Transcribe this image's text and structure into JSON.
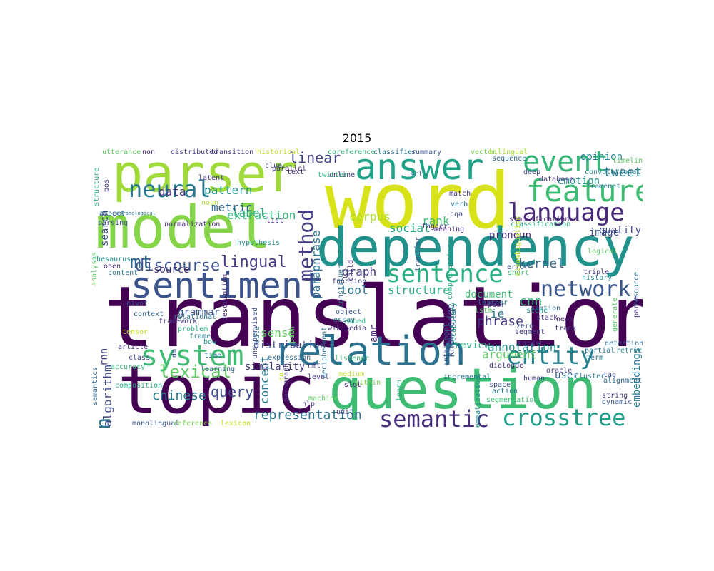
{
  "title": "2015",
  "words": [
    {
      "t": "translation",
      "c": "#440154"
    },
    {
      "t": "word",
      "c": "#d8e219"
    },
    {
      "t": "model",
      "c": "#86d549"
    },
    {
      "t": "dependency",
      "c": "#21918c"
    },
    {
      "t": "question",
      "c": "#3fbc73"
    },
    {
      "t": "topic",
      "c": "#440154"
    },
    {
      "t": "parser",
      "c": "#9fda3a"
    },
    {
      "t": "relation",
      "c": "#2c728e"
    },
    {
      "t": "sentiment",
      "c": "#3b528b"
    },
    {
      "t": "answer",
      "c": "#1fa187"
    },
    {
      "t": "feature",
      "c": "#3fbc73"
    },
    {
      "t": "language",
      "c": "#482878"
    },
    {
      "t": "event",
      "c": "#35b779"
    },
    {
      "t": "system",
      "c": "#3fbc73"
    },
    {
      "t": "entity",
      "c": "#26828e"
    },
    {
      "t": "sentence",
      "c": "#2ab07f"
    },
    {
      "t": "semantic",
      "c": "#472d7b"
    },
    {
      "t": "crosstree",
      "c": "#1f9e89"
    },
    {
      "t": "network",
      "c": "#39568c"
    },
    {
      "t": "neural",
      "c": "#2a788e"
    },
    {
      "t": "domain",
      "c": "#2c728e"
    },
    {
      "t": "method",
      "c": "#433e85"
    },
    {
      "t": "mt",
      "c": "#31688e"
    },
    {
      "t": "lexical",
      "c": "#5ec962"
    },
    {
      "t": "discourse",
      "c": "#3b528b"
    },
    {
      "t": "lingual",
      "c": "#443983"
    },
    {
      "t": "query",
      "c": "#3e4989"
    },
    {
      "t": "chinese",
      "c": "#2a788e"
    },
    {
      "t": "representation",
      "c": "#2c728e"
    },
    {
      "t": "kernel",
      "c": "#31688e"
    },
    {
      "t": "tweet",
      "c": "#2a788e"
    },
    {
      "t": "linear",
      "c": "#414487"
    },
    {
      "t": "pattern",
      "c": "#21918c"
    },
    {
      "t": "data",
      "c": "#46337e"
    },
    {
      "t": "label",
      "c": "#2ab07f"
    },
    {
      "t": "metric",
      "c": "#31688e"
    },
    {
      "t": "extraction",
      "c": "#35b779"
    },
    {
      "t": "corpus",
      "c": "#aadc32"
    },
    {
      "t": "social",
      "c": "#22a884"
    },
    {
      "t": "rank",
      "c": "#3fbc73"
    },
    {
      "t": "paraphrase",
      "c": "#2c728e"
    },
    {
      "t": "opinion",
      "c": "#26828e"
    },
    {
      "t": "emotion",
      "c": "#21918c"
    },
    {
      "t": "image",
      "c": "#3b528b"
    },
    {
      "t": "quality",
      "c": "#414487"
    },
    {
      "t": "pronoun",
      "c": "#482878"
    },
    {
      "t": "structure",
      "c": "#2ab07f"
    },
    {
      "t": "graph",
      "c": "#433e85"
    },
    {
      "t": "tool",
      "c": "#2c728e"
    },
    {
      "t": "document",
      "c": "#3fbc73"
    },
    {
      "t": "algorithm",
      "c": "#3e4989"
    },
    {
      "t": "source",
      "c": "#46337e"
    },
    {
      "t": "grammar",
      "c": "#3b528b"
    },
    {
      "t": "phrase",
      "c": "#443983"
    },
    {
      "t": "cnn",
      "c": "#35b779"
    },
    {
      "t": "ie",
      "c": "#2c728e"
    },
    {
      "t": "amr",
      "c": "#482878"
    },
    {
      "t": "concept",
      "c": "#2a788e"
    },
    {
      "t": "sense",
      "c": "#5ec962"
    },
    {
      "t": "similarity",
      "c": "#443983"
    },
    {
      "t": "distribution",
      "c": "#3e4989"
    },
    {
      "t": "annotation",
      "c": "#21918c"
    },
    {
      "t": "argument",
      "c": "#5ec962"
    },
    {
      "t": "user",
      "c": "#31688e"
    },
    {
      "t": "embeddings",
      "c": "#287c8e"
    },
    {
      "t": "knowledge",
      "c": "#39568c"
    },
    {
      "t": "review",
      "c": "#2ab07f"
    },
    {
      "t": "search",
      "c": "#3b528b"
    },
    {
      "t": "rnn",
      "c": "#414487"
    },
    {
      "t": "utterance",
      "c": "#5ec962"
    },
    {
      "t": "non",
      "c": "#472d7b"
    },
    {
      "t": "distributed",
      "c": "#443983"
    },
    {
      "t": "transition",
      "c": "#46337e"
    },
    {
      "t": "historical",
      "c": "#bddf26"
    },
    {
      "t": "coreference",
      "c": "#35b779"
    },
    {
      "t": "classifier",
      "c": "#2c728e"
    },
    {
      "t": "summary",
      "c": "#3b528b"
    },
    {
      "t": "vector",
      "c": "#7ad151"
    },
    {
      "t": "bilingual",
      "c": "#aadc32"
    },
    {
      "t": "sequence",
      "c": "#31688e"
    },
    {
      "t": "timeline",
      "c": "#5ec962"
    },
    {
      "t": "convolutional",
      "c": "#26828e"
    },
    {
      "t": "database",
      "c": "#46337e"
    },
    {
      "t": "deep",
      "c": "#3e4989"
    },
    {
      "t": "framenet",
      "c": "#2a788e"
    },
    {
      "t": "classification",
      "c": "#22a884"
    },
    {
      "t": "simplification",
      "c": "#482878"
    },
    {
      "t": "comprehension",
      "c": "#22a884"
    },
    {
      "t": "latent",
      "c": "#443983"
    },
    {
      "t": "online",
      "c": "#46337e"
    },
    {
      "t": "twitter",
      "c": "#2ab07f"
    },
    {
      "t": "text",
      "c": "#472d7b"
    },
    {
      "t": "match",
      "c": "#46337e"
    },
    {
      "t": "verb",
      "c": "#2c728e"
    },
    {
      "t": "srl",
      "c": "#31688e"
    },
    {
      "t": "parsing",
      "c": "#3b528b"
    },
    {
      "t": "noun",
      "c": "#aadc32"
    },
    {
      "t": "normalization",
      "c": "#472d7b"
    },
    {
      "t": "aspect",
      "c": "#31688e"
    },
    {
      "t": "morphological",
      "c": "#2a788e"
    },
    {
      "t": "list",
      "c": "#46337e"
    },
    {
      "t": "hypothesis",
      "c": "#21918c"
    },
    {
      "t": "meaning",
      "c": "#482878"
    },
    {
      "t": "tagger",
      "c": "#443983"
    },
    {
      "t": "cqa",
      "c": "#3e4989"
    },
    {
      "t": "logical",
      "c": "#5ec962"
    },
    {
      "t": "error",
      "c": "#3b528b"
    },
    {
      "t": "short",
      "c": "#3fbc73"
    },
    {
      "t": "triple",
      "c": "#46337e"
    },
    {
      "t": "history",
      "c": "#26828e"
    },
    {
      "t": "resource",
      "c": "#2c728e"
    },
    {
      "t": "parse",
      "c": "#46337e"
    },
    {
      "t": "thesaurus",
      "c": "#21918c"
    },
    {
      "t": "content",
      "c": "#2a788e"
    },
    {
      "t": "function",
      "c": "#3e4989"
    },
    {
      "t": "description",
      "c": "#472d7b"
    },
    {
      "t": "open",
      "c": "#472d7b"
    },
    {
      "t": "context",
      "c": "#31688e"
    },
    {
      "t": "pivot",
      "c": "#39568c"
    },
    {
      "t": "relational",
      "c": "#2c728e"
    },
    {
      "t": "framework",
      "c": "#443983"
    },
    {
      "t": "frame",
      "c": "#2a788e"
    },
    {
      "t": "problem",
      "c": "#2ab07f"
    },
    {
      "t": "tensor",
      "c": "#bddf26"
    },
    {
      "t": "article",
      "c": "#46337e"
    },
    {
      "t": "class",
      "c": "#414487"
    },
    {
      "t": "bow",
      "c": "#21918c"
    },
    {
      "t": "time",
      "c": "#2a788e"
    },
    {
      "t": "accuracy",
      "c": "#35b779"
    },
    {
      "t": "semantics",
      "c": "#31688e"
    },
    {
      "t": "composition",
      "c": "#2ab07f"
    },
    {
      "t": "dm",
      "c": "#3e4989"
    },
    {
      "t": "monolingual",
      "c": "#39568c"
    },
    {
      "t": "reference",
      "c": "#7ad151"
    },
    {
      "t": "lexicon",
      "c": "#bddf26"
    },
    {
      "t": "machine",
      "c": "#5ec962"
    },
    {
      "t": "nlp",
      "c": "#46337e"
    },
    {
      "t": "unit",
      "c": "#433e85"
    },
    {
      "t": "within",
      "c": "#7ad151"
    },
    {
      "t": "object",
      "c": "#3b528b"
    },
    {
      "t": "embed",
      "c": "#2ab07f"
    },
    {
      "t": "essay",
      "c": "#2a788e"
    },
    {
      "t": "wikipedia",
      "c": "#46337e"
    },
    {
      "t": "listener",
      "c": "#3fbc73"
    },
    {
      "t": "decipherment",
      "c": "#2c728e"
    },
    {
      "t": "slot",
      "c": "#472d7b"
    },
    {
      "t": "nmt",
      "c": "#46337e"
    },
    {
      "t": "level",
      "c": "#433e85"
    },
    {
      "t": "medium",
      "c": "#bddf26"
    },
    {
      "t": "incremental",
      "c": "#2a788e"
    },
    {
      "t": "lemmatization",
      "c": "#21918c"
    },
    {
      "t": "entailment",
      "c": "#39568c"
    },
    {
      "t": "vocabulary",
      "c": "#21918c"
    },
    {
      "t": "caption",
      "c": "#31688e"
    },
    {
      "t": "lstm",
      "c": "#5ec962"
    },
    {
      "t": "learner",
      "c": "#2c728e"
    },
    {
      "t": "pair",
      "c": "#3e4989"
    },
    {
      "t": "scene",
      "c": "#21918c"
    },
    {
      "t": "stack",
      "c": "#46337e"
    },
    {
      "t": "news",
      "c": "#482878"
    },
    {
      "t": "track",
      "c": "#443983"
    },
    {
      "t": "segment",
      "c": "#414487"
    },
    {
      "t": "zero",
      "c": "#3b528b"
    },
    {
      "t": "target",
      "c": "#46337e"
    },
    {
      "t": "dialogue",
      "c": "#472d7b"
    },
    {
      "t": "oracle",
      "c": "#443983"
    },
    {
      "t": "cluster",
      "c": "#2a788e"
    },
    {
      "t": "tag",
      "c": "#3e4989"
    },
    {
      "t": "human",
      "c": "#433e85"
    },
    {
      "t": "alignment",
      "c": "#31688e"
    },
    {
      "t": "string",
      "c": "#46337e"
    },
    {
      "t": "dynamic",
      "c": "#39568c"
    },
    {
      "t": "space",
      "c": "#3b528b"
    },
    {
      "t": "action",
      "c": "#2a788e"
    },
    {
      "t": "segmentation",
      "c": "#3fbc73"
    },
    {
      "t": "detection",
      "c": "#31688e"
    },
    {
      "t": "retrieval",
      "c": "#26828e"
    },
    {
      "t": "partial",
      "c": "#2c728e"
    },
    {
      "t": "generate",
      "c": "#5ec962"
    },
    {
      "t": "term",
      "c": "#2a788e"
    },
    {
      "t": "disambiguation",
      "c": "#bddf26"
    },
    {
      "t": "analysis",
      "c": "#5ec962"
    },
    {
      "t": "structure",
      "c": "#2ab07f"
    },
    {
      "t": "pos",
      "c": "#46337e"
    },
    {
      "t": "learning",
      "c": "#31688e"
    },
    {
      "t": "clue",
      "c": "#3e4989"
    },
    {
      "t": "parallel",
      "c": "#472d7b"
    },
    {
      "t": "transfer",
      "c": "#39568c"
    },
    {
      "t": "constituent",
      "c": "#2c728e"
    },
    {
      "t": "child",
      "c": "#472d7b"
    },
    {
      "t": "rule",
      "c": "#2a788e"
    },
    {
      "t": "expression",
      "c": "#31688e"
    },
    {
      "t": "unsupervised",
      "c": "#3e4989"
    },
    {
      "t": "paragraph",
      "c": "#46337e"
    },
    {
      "t": "path",
      "c": "#5ec962"
    },
    {
      "t": "learn",
      "c": "#2ab07f"
    },
    {
      "t": "co",
      "c": "#bddf26"
    }
  ]
}
